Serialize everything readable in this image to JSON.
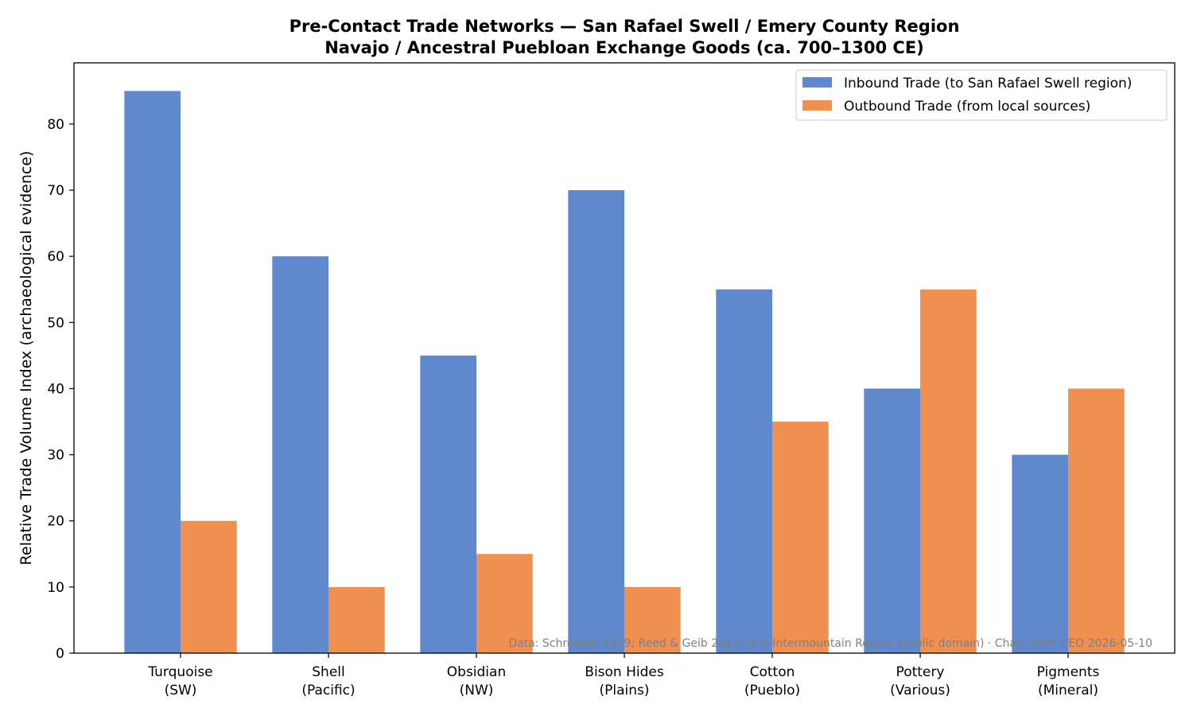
{
  "chart_data": {
    "type": "bar",
    "title": "Pre-Contact Trade Networks — San Rafael Swell / Emery County Region",
    "subtitle": "Navajo / Ancestral Puebloan Exchange Goods (ca. 700–1300 CE)",
    "xlabel": "",
    "ylabel": "Relative Trade Volume Index (archaeological evidence)",
    "categories": [
      [
        "Turquoise",
        "(SW)"
      ],
      [
        "Shell",
        "(Pacific)"
      ],
      [
        "Obsidian",
        "(NW)"
      ],
      [
        "Bison Hides",
        "(Plains)"
      ],
      [
        "Cotton",
        "(Pueblo)"
      ],
      [
        "Pottery",
        "(Various)"
      ],
      [
        "Pigments",
        "(Mineral)"
      ]
    ],
    "series": [
      {
        "name": "Inbound Trade (to San Rafael Swell region)",
        "color": "#6088cc",
        "values": [
          85,
          60,
          45,
          70,
          55,
          40,
          30
        ]
      },
      {
        "name": "Outbound Trade (from local sources)",
        "color": "#ef8f50",
        "values": [
          20,
          10,
          15,
          10,
          35,
          55,
          40
        ]
      }
    ],
    "ylim": [
      0,
      89.25
    ],
    "yticks": [
      0,
      10,
      20,
      30,
      40,
      50,
      60,
      70,
      80
    ],
    "grid": false,
    "legend_position": "top-right",
    "source_note": "Data: Schroeder 1979; Reed & Geib 2013; NPS Intermountain Region (public domain) · Chart: SRM CEO 2026-05-10"
  }
}
